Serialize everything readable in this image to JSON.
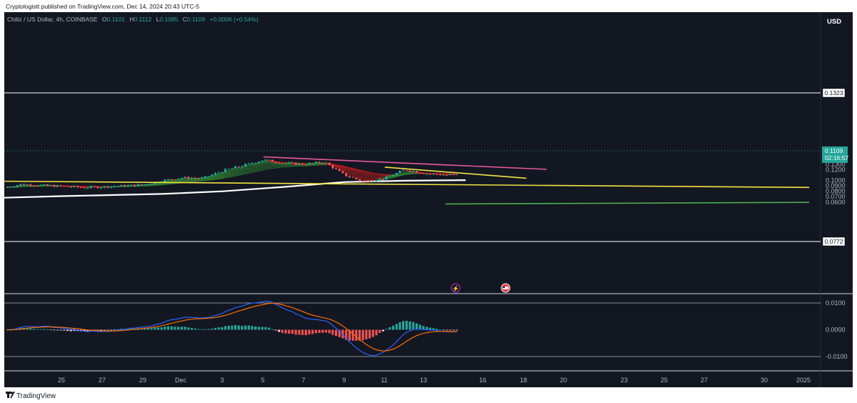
{
  "header": {
    "publisher": "Cryptologistt published on TradingView.com, Dec 14, 2024 20:43 UTC-5"
  },
  "legend": {
    "symbol": "Chiliz / US Dollar, 4h, COINBASE",
    "open_label": "O",
    "open": "0.1101",
    "high_label": "H",
    "high": "0.1112",
    "low_label": "L",
    "low": "0.1085",
    "close_label": "C",
    "close": "0.1109",
    "change": "+0.0006 (+0.54%)"
  },
  "currency_button": "USD",
  "price_scale": [
    "0.1500",
    "0.1400",
    "0.1300",
    "0.1200",
    "0.1000",
    "0.0900",
    "0.0800",
    "0.0700",
    "0.0600"
  ],
  "price_badges": {
    "resistance": "0.1323",
    "support": "0.0772",
    "last_price": "0.1109",
    "countdown": "02:16:57"
  },
  "indicator_scale": [
    "0.0100",
    "0.0000",
    "-0.0100"
  ],
  "date_axis": [
    "25",
    "27",
    "29",
    "Dec",
    "3",
    "5",
    "7",
    "9",
    "11",
    "13",
    "16",
    "18",
    "20",
    "23",
    "25",
    "27",
    "30",
    "2025"
  ],
  "footer": {
    "brand": "TradingView"
  },
  "colors": {
    "background": "#131722",
    "up": "#26a69a",
    "down": "#ef5350",
    "pink_trendline": "#e85a9b",
    "yellow_trendline": "#f4e242",
    "ma_line": "#ffffff",
    "green_line": "#4caf50",
    "macd_line": "#2962ff",
    "signal_line": "#ff6d00"
  },
  "chart_data": {
    "type": "candlestick",
    "timeframe": "4h",
    "symbol": "Chiliz / US Dollar",
    "y_range": [
      0.052,
      0.156
    ],
    "horizontal_levels": [
      0.1323,
      0.0772,
      0.1109
    ],
    "ohlc_last": {
      "open": 0.1101,
      "high": 0.1112,
      "low": 0.1085,
      "close": 0.1109,
      "change": 0.0006,
      "change_pct": 0.54
    },
    "swing_path": [
      [
        "Nov 21",
        0.077
      ],
      [
        "Nov 22",
        0.085
      ],
      [
        "Nov 23",
        0.093
      ],
      [
        "Nov 24",
        0.091
      ],
      [
        "Nov 26",
        0.087
      ],
      [
        "Nov 27",
        0.088
      ],
      [
        "Nov 28",
        0.09
      ],
      [
        "Nov 29",
        0.092
      ],
      [
        "Nov 30",
        0.1
      ],
      [
        "Dec 1",
        0.105
      ],
      [
        "Dec 2",
        0.104
      ],
      [
        "Dec 3",
        0.118
      ],
      [
        "Dec 4",
        0.128
      ],
      [
        "Dec 5",
        0.138
      ],
      [
        "Dec 6",
        0.132
      ],
      [
        "Dec 7",
        0.13
      ],
      [
        "Dec 8",
        0.134
      ],
      [
        "Dec 9",
        0.11
      ],
      [
        "Dec 10",
        0.097
      ],
      [
        "Dec 11",
        0.104
      ],
      [
        "Dec 12",
        0.12
      ],
      [
        "Dec 13",
        0.113
      ],
      [
        "Dec 14",
        0.11
      ]
    ],
    "trendlines": [
      {
        "color": "pink",
        "from": [
          "Dec 5",
          0.1435
        ],
        "to": [
          "Dec 19",
          0.1205
        ]
      },
      {
        "color": "yellow",
        "from": [
          "Dec 11",
          0.1245
        ],
        "to": [
          "Dec 18",
          0.104
        ]
      },
      {
        "color": "yellow",
        "from": [
          "Nov 20",
          0.0985
        ],
        "to": [
          "Jan 1",
          0.087
        ]
      },
      {
        "color": "green",
        "from": [
          "Dec 14",
          0.0565
        ],
        "to": [
          "Jan 1",
          0.0595
        ]
      }
    ],
    "moving_average": [
      [
        "Nov 20",
        0.068
      ],
      [
        "Nov 25",
        0.071
      ],
      [
        "Nov 30",
        0.075
      ],
      [
        "Dec 3",
        0.08
      ],
      [
        "Dec 6",
        0.088
      ],
      [
        "Dec 9",
        0.097
      ],
      [
        "Dec 12",
        0.0995
      ],
      [
        "Dec 15",
        0.1005
      ]
    ],
    "macd_range": [
      -0.012,
      0.012
    ]
  }
}
